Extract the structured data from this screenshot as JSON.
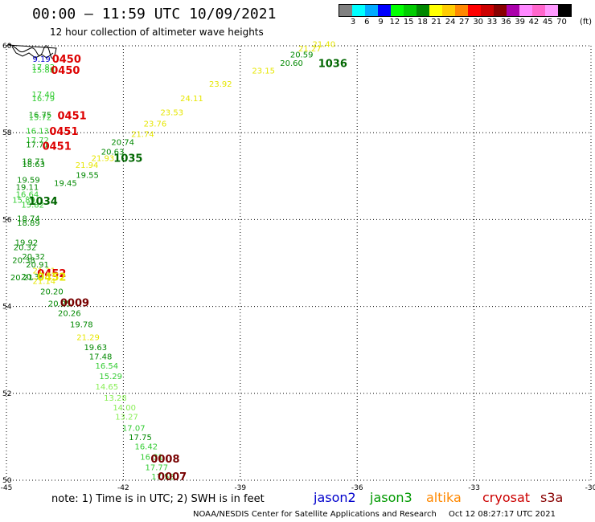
{
  "header": {
    "title": "00:00 — 11:59 UTC 10/09/2021",
    "subtitle": "12 hour collection of altimeter wave heights"
  },
  "legend": {
    "unit": "(ft)",
    "colors": [
      "#808080",
      "#00ffff",
      "#00aaff",
      "#0000ff",
      "#00ff00",
      "#00cc00",
      "#008800",
      "#ffff00",
      "#ffcc00",
      "#ff8800",
      "#ff0000",
      "#cc0000",
      "#880000",
      "#aa00aa",
      "#ff88ff",
      "#ff66cc",
      "#ff99ff",
      "#000000"
    ],
    "ticks": [
      "3",
      "6",
      "9",
      "12",
      "15",
      "18",
      "21",
      "24",
      "27",
      "30",
      "33",
      "36",
      "39",
      "42",
      "45",
      "70"
    ]
  },
  "map": {
    "lon_min": -45,
    "lon_max": -30,
    "lat_min": 50,
    "lat_max": 60,
    "lon_ticks": [
      "-45",
      "-42",
      "-39",
      "-36",
      "-33",
      "-30"
    ],
    "lat_ticks": [
      "60",
      "58",
      "56",
      "54",
      "52",
      "50"
    ],
    "readings": [
      {
        "lon": -44.33,
        "lat": 59.63,
        "v": "9.19",
        "c": "#0000cc"
      },
      {
        "lon": -44.35,
        "lat": 59.45,
        "v": "17.82",
        "c": "#33cc33"
      },
      {
        "lon": -44.35,
        "lat": 59.38,
        "v": "15.88",
        "c": "#33cc33"
      },
      {
        "lon": -44.35,
        "lat": 58.82,
        "v": "17.40",
        "c": "#33cc33"
      },
      {
        "lon": -44.35,
        "lat": 58.72,
        "v": "16.79",
        "c": "#33cc33"
      },
      {
        "lon": -44.43,
        "lat": 58.35,
        "v": "16.75",
        "c": "#008800"
      },
      {
        "lon": -44.43,
        "lat": 58.29,
        "v": "15.72",
        "c": "#33cc33"
      },
      {
        "lon": -44.5,
        "lat": 57.98,
        "v": "16.13",
        "c": "#33cc33"
      },
      {
        "lon": -44.5,
        "lat": 57.76,
        "v": "17.72",
        "c": "#33cc33"
      },
      {
        "lon": -44.5,
        "lat": 57.66,
        "v": "17.71",
        "c": "#008800"
      },
      {
        "lon": -44.6,
        "lat": 57.27,
        "v": "18.71",
        "c": "#008800"
      },
      {
        "lon": -44.6,
        "lat": 57.21,
        "v": "18.63",
        "c": "#008800"
      },
      {
        "lon": -44.73,
        "lat": 56.85,
        "v": "19.59",
        "c": "#008800"
      },
      {
        "lon": -44.76,
        "lat": 56.68,
        "v": "19.11",
        "c": "#008800"
      },
      {
        "lon": -44.76,
        "lat": 56.52,
        "v": "16.64",
        "c": "#33cc33"
      },
      {
        "lon": -44.85,
        "lat": 56.39,
        "v": "15.89",
        "c": "#33cc33"
      },
      {
        "lon": -44.62,
        "lat": 56.28,
        "v": "15.82",
        "c": "#33cc33"
      },
      {
        "lon": -44.73,
        "lat": 55.96,
        "v": "18.74",
        "c": "#008800"
      },
      {
        "lon": -44.73,
        "lat": 55.86,
        "v": "18.89",
        "c": "#008800"
      },
      {
        "lon": -44.78,
        "lat": 55.41,
        "v": "19.92",
        "c": "#008800"
      },
      {
        "lon": -44.82,
        "lat": 55.3,
        "v": "20.32",
        "c": "#008800"
      },
      {
        "lon": -44.6,
        "lat": 55.08,
        "v": "20.32",
        "c": "#008800"
      },
      {
        "lon": -44.85,
        "lat": 55.0,
        "v": "20.38",
        "c": "#008800"
      },
      {
        "lon": -44.5,
        "lat": 54.9,
        "v": "20.91",
        "c": "#008800"
      },
      {
        "lon": -44.9,
        "lat": 54.6,
        "v": "20.21",
        "c": "#008800"
      },
      {
        "lon": -44.62,
        "lat": 54.62,
        "v": "20.34",
        "c": "#008800"
      },
      {
        "lon": -44.33,
        "lat": 54.76,
        "v": "21.31",
        "c": "#e6e600"
      },
      {
        "lon": -44.33,
        "lat": 54.52,
        "v": "21.14",
        "c": "#e6e600"
      },
      {
        "lon": -44.13,
        "lat": 54.28,
        "v": "20.20",
        "c": "#008800"
      },
      {
        "lon": -43.93,
        "lat": 54.0,
        "v": "20.25",
        "c": "#008800"
      },
      {
        "lon": -43.68,
        "lat": 53.78,
        "v": "20.26",
        "c": "#008800"
      },
      {
        "lon": -43.37,
        "lat": 53.52,
        "v": "19.78",
        "c": "#008800"
      },
      {
        "lon": -43.2,
        "lat": 53.23,
        "v": "21.29",
        "c": "#e6e600"
      },
      {
        "lon": -43.01,
        "lat": 52.99,
        "v": "19.63",
        "c": "#008800"
      },
      {
        "lon": -42.88,
        "lat": 52.78,
        "v": "17.48",
        "c": "#008800"
      },
      {
        "lon": -42.72,
        "lat": 52.57,
        "v": "16.54",
        "c": "#33cc33"
      },
      {
        "lon": -42.62,
        "lat": 52.33,
        "v": "15.29",
        "c": "#33cc33"
      },
      {
        "lon": -42.72,
        "lat": 52.09,
        "v": "14.65",
        "c": "#88ee55"
      },
      {
        "lon": -42.5,
        "lat": 51.83,
        "v": "13.28",
        "c": "#88ee55"
      },
      {
        "lon": -42.27,
        "lat": 51.61,
        "v": "14.00",
        "c": "#88ee55"
      },
      {
        "lon": -42.21,
        "lat": 51.4,
        "v": "13.27",
        "c": "#88ee55"
      },
      {
        "lon": -42.03,
        "lat": 51.14,
        "v": "17.07",
        "c": "#33cc33"
      },
      {
        "lon": -41.86,
        "lat": 50.92,
        "v": "17.75",
        "c": "#008800"
      },
      {
        "lon": -41.71,
        "lat": 50.71,
        "v": "16.42",
        "c": "#33cc33"
      },
      {
        "lon": -41.57,
        "lat": 50.47,
        "v": "16.31",
        "c": "#33cc33"
      },
      {
        "lon": -41.44,
        "lat": 50.23,
        "v": "17.77",
        "c": "#33cc33"
      },
      {
        "lon": -41.28,
        "lat": 50.02,
        "v": "17.58",
        "c": "#33cc33"
      },
      {
        "lon": -43.22,
        "lat": 56.96,
        "v": "19.55",
        "c": "#008800"
      },
      {
        "lon": -43.78,
        "lat": 56.77,
        "v": "19.45",
        "c": "#008800"
      },
      {
        "lon": -43.23,
        "lat": 57.19,
        "v": "21.94",
        "c": "#e6e600"
      },
      {
        "lon": -42.57,
        "lat": 57.5,
        "v": "20.63",
        "c": "#008800"
      },
      {
        "lon": -42.31,
        "lat": 57.72,
        "v": "20.74",
        "c": "#008800"
      },
      {
        "lon": -42.82,
        "lat": 57.35,
        "v": "21.93",
        "c": "#e6e600"
      },
      {
        "lon": -41.8,
        "lat": 57.9,
        "v": "21.74",
        "c": "#e6e600"
      },
      {
        "lon": -41.48,
        "lat": 58.14,
        "v": "23.76",
        "c": "#e6e600"
      },
      {
        "lon": -41.05,
        "lat": 58.4,
        "v": "23.53",
        "c": "#e6e600"
      },
      {
        "lon": -40.54,
        "lat": 58.72,
        "v": "24.11",
        "c": "#e6e600"
      },
      {
        "lon": -39.8,
        "lat": 59.06,
        "v": "23.92",
        "c": "#e6e600"
      },
      {
        "lon": -38.7,
        "lat": 59.36,
        "v": "23.15",
        "c": "#e6e600"
      },
      {
        "lon": -37.98,
        "lat": 59.54,
        "v": "20.60",
        "c": "#008800"
      },
      {
        "lon": -37.72,
        "lat": 59.73,
        "v": "20.59",
        "c": "#008800"
      },
      {
        "lon": -37.51,
        "lat": 59.87,
        "v": "21.27",
        "c": "#e6e600"
      },
      {
        "lon": -37.15,
        "lat": 59.97,
        "v": "21.40",
        "c": "#e6e600"
      }
    ],
    "ids": [
      {
        "lon": -43.83,
        "lat": 59.61,
        "v": "0450",
        "c": "#dd0000"
      },
      {
        "lon": -43.86,
        "lat": 59.35,
        "v": "0450",
        "c": "#dd0000"
      },
      {
        "lon": -43.69,
        "lat": 58.31,
        "v": "0451",
        "c": "#dd0000"
      },
      {
        "lon": -43.9,
        "lat": 57.95,
        "v": "0451",
        "c": "#dd0000"
      },
      {
        "lon": -44.08,
        "lat": 57.61,
        "v": "0451",
        "c": "#dd0000"
      },
      {
        "lon": -37.0,
        "lat": 59.51,
        "v": "1036",
        "c": "#006600"
      },
      {
        "lon": -42.25,
        "lat": 57.33,
        "v": "1035",
        "c": "#006600"
      },
      {
        "lon": -44.43,
        "lat": 56.34,
        "v": "1034",
        "c": "#006600"
      },
      {
        "lon": -44.21,
        "lat": 54.68,
        "v": "0452",
        "c": "#dd0000"
      },
      {
        "lon": -44.21,
        "lat": 54.59,
        "v": "0452",
        "c": "#e6e600"
      },
      {
        "lon": -43.62,
        "lat": 54.0,
        "v": "0009",
        "c": "#770000"
      },
      {
        "lon": -41.3,
        "lat": 50.41,
        "v": "0008",
        "c": "#770000"
      },
      {
        "lon": -41.12,
        "lat": 50.0,
        "v": "0007",
        "c": "#770000"
      }
    ]
  },
  "note": "note: 1) Time is in UTC; 2) SWH is in feet",
  "satellites": [
    {
      "name": "jason2",
      "color": "#0000cc",
      "left": 390
    },
    {
      "name": "jason3",
      "color": "#009900",
      "left": 460
    },
    {
      "name": "altika",
      "color": "#ff8800",
      "left": 530
    },
    {
      "name": "cryosat",
      "color": "#cc0000",
      "left": 600
    },
    {
      "name": "s3a",
      "color": "#880000",
      "left": 672
    }
  ],
  "footer": {
    "source": "NOAA/NESDIS Center for Satellite Applications and Research",
    "date": "Oct 12 08:27:17 UTC 2021"
  }
}
